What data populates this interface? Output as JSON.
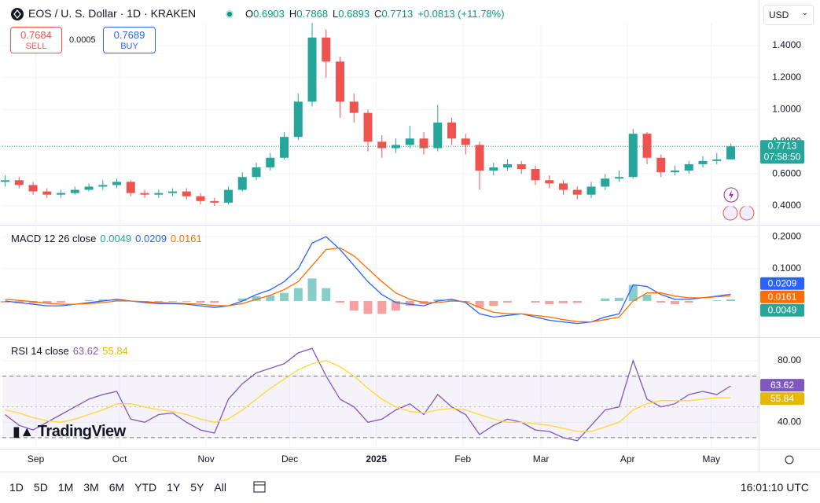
{
  "header": {
    "symbol": "EOS / U. S. Dollar · 1D · KRAKEN",
    "ohlc": [
      {
        "label": "O",
        "value": 0.6903
      },
      {
        "label": "H",
        "value": 0.7868
      },
      {
        "label": "L",
        "value": 0.6893
      },
      {
        "label": "C",
        "value": 0.7713
      }
    ],
    "change": "+0.0813 (+11.78%)",
    "sell": {
      "price": 0.7684,
      "label": "SELL"
    },
    "spread": 0.0005,
    "buy": {
      "price": 0.7689,
      "label": "BUY"
    },
    "currency": "USD"
  },
  "chart_data": [
    {
      "type": "candlestick",
      "x": [
        0,
        5,
        10,
        15,
        20,
        25,
        30,
        35,
        40,
        45,
        50,
        55,
        60,
        65,
        70,
        75,
        80,
        85,
        90,
        95,
        100,
        105,
        110,
        115,
        120,
        125,
        130,
        135,
        140,
        145,
        150,
        155,
        160,
        165,
        170,
        175,
        180,
        185,
        190,
        195,
        200,
        205,
        210,
        215,
        220,
        225,
        230,
        235,
        240,
        245,
        250,
        255,
        260
      ],
      "open": [
        0.55,
        0.56,
        0.53,
        0.49,
        0.47,
        0.48,
        0.5,
        0.52,
        0.53,
        0.55,
        0.48,
        0.47,
        0.48,
        0.49,
        0.46,
        0.43,
        0.42,
        0.5,
        0.58,
        0.64,
        0.7,
        0.83,
        1.05,
        1.45,
        1.3,
        1.05,
        0.98,
        0.8,
        0.76,
        0.78,
        0.82,
        0.76,
        0.92,
        0.82,
        0.78,
        0.62,
        0.64,
        0.66,
        0.63,
        0.56,
        0.54,
        0.5,
        0.47,
        0.52,
        0.57,
        0.58,
        0.85,
        0.7,
        0.61,
        0.62,
        0.66,
        0.68,
        0.6903
      ],
      "high": [
        0.59,
        0.58,
        0.55,
        0.51,
        0.5,
        0.52,
        0.54,
        0.56,
        0.57,
        0.56,
        0.5,
        0.5,
        0.51,
        0.51,
        0.48,
        0.45,
        0.52,
        0.61,
        0.67,
        0.73,
        0.86,
        1.1,
        1.54,
        1.5,
        1.33,
        1.1,
        1.0,
        0.84,
        0.82,
        0.9,
        0.86,
        1.03,
        0.95,
        0.85,
        0.8,
        0.67,
        0.69,
        0.68,
        0.65,
        0.59,
        0.56,
        0.52,
        0.55,
        0.6,
        0.62,
        0.88,
        0.86,
        0.72,
        0.65,
        0.68,
        0.71,
        0.73,
        0.7868
      ],
      "low": [
        0.52,
        0.51,
        0.47,
        0.45,
        0.45,
        0.47,
        0.49,
        0.5,
        0.51,
        0.46,
        0.45,
        0.45,
        0.46,
        0.44,
        0.41,
        0.4,
        0.41,
        0.49,
        0.56,
        0.62,
        0.69,
        0.81,
        1.02,
        1.2,
        0.95,
        0.92,
        0.74,
        0.7,
        0.73,
        0.76,
        0.72,
        0.74,
        0.78,
        0.72,
        0.5,
        0.59,
        0.62,
        0.6,
        0.53,
        0.51,
        0.47,
        0.44,
        0.45,
        0.5,
        0.55,
        0.57,
        0.66,
        0.58,
        0.59,
        0.6,
        0.64,
        0.66,
        0.6893
      ],
      "close": [
        0.56,
        0.53,
        0.49,
        0.47,
        0.48,
        0.5,
        0.52,
        0.53,
        0.55,
        0.48,
        0.47,
        0.48,
        0.49,
        0.46,
        0.43,
        0.42,
        0.5,
        0.58,
        0.64,
        0.7,
        0.83,
        1.05,
        1.45,
        1.3,
        1.05,
        0.98,
        0.8,
        0.76,
        0.78,
        0.82,
        0.76,
        0.92,
        0.82,
        0.78,
        0.62,
        0.64,
        0.66,
        0.63,
        0.56,
        0.54,
        0.5,
        0.47,
        0.52,
        0.57,
        0.58,
        0.85,
        0.7,
        0.61,
        0.62,
        0.66,
        0.68,
        0.69,
        0.7713
      ],
      "up_color": "#26a69a",
      "down_color": "#ef5350",
      "xlim": [
        -1,
        270
      ],
      "xticks": [
        {
          "value": 11,
          "label": "Sep"
        },
        {
          "value": 41,
          "label": "Oct"
        },
        {
          "value": 72,
          "label": "Nov"
        },
        {
          "value": 102,
          "label": "Dec"
        },
        {
          "value": 133,
          "label": "2025",
          "bold": true
        },
        {
          "value": 164,
          "label": "Feb"
        },
        {
          "value": 192,
          "label": "Mar"
        },
        {
          "value": 223,
          "label": "Apr"
        },
        {
          "value": 253,
          "label": "May"
        }
      ],
      "ylim": [
        0.287,
        1.537
      ],
      "yticks": [
        {
          "value": 0.4,
          "label": "0.4000"
        },
        {
          "value": 0.6,
          "label": "0.6000"
        },
        {
          "value": 0.8,
          "label": "0.8000"
        },
        {
          "value": 1.0,
          "label": "1.0000"
        },
        {
          "value": 1.2,
          "label": "1.2000"
        },
        {
          "value": 1.4,
          "label": "1.4000"
        }
      ],
      "last_price": 0.7713,
      "countdown": "07:58:50",
      "grid": true
    },
    {
      "type": "macd",
      "legend": {
        "label": "MACD 12 26 close",
        "values": [
          {
            "value": 0.0049,
            "color": "#26a69a"
          },
          {
            "value": 0.0209,
            "color": "#2962ff"
          },
          {
            "value": 0.0161,
            "color": "#ff6d00"
          }
        ]
      },
      "series": [
        {
          "color": "#2962ff",
          "values": [
            0.0,
            -0.005,
            -0.01,
            -0.015,
            -0.015,
            -0.01,
            -0.005,
            0.0,
            0.005,
            0.0,
            -0.005,
            -0.008,
            -0.008,
            -0.01,
            -0.015,
            -0.02,
            -0.015,
            0.0,
            0.02,
            0.035,
            0.06,
            0.1,
            0.18,
            0.2,
            0.16,
            0.11,
            0.06,
            0.02,
            -0.005,
            -0.01,
            -0.015,
            0.0,
            0.005,
            -0.005,
            -0.04,
            -0.05,
            -0.045,
            -0.04,
            -0.05,
            -0.06,
            -0.065,
            -0.07,
            -0.065,
            -0.05,
            -0.04,
            0.05,
            0.045,
            0.02,
            0.005,
            0.005,
            0.01,
            0.015,
            0.0209
          ]
        },
        {
          "color": "#ff6d00",
          "values": [
            0.005,
            0.002,
            -0.002,
            -0.007,
            -0.01,
            -0.01,
            -0.008,
            -0.005,
            0.0,
            0.0,
            -0.002,
            -0.005,
            -0.006,
            -0.008,
            -0.01,
            -0.014,
            -0.015,
            -0.008,
            0.005,
            0.018,
            0.035,
            0.06,
            0.11,
            0.16,
            0.165,
            0.14,
            0.1,
            0.06,
            0.025,
            0.005,
            -0.005,
            -0.005,
            0.0,
            -0.002,
            -0.02,
            -0.035,
            -0.04,
            -0.04,
            -0.045,
            -0.05,
            -0.058,
            -0.064,
            -0.065,
            -0.058,
            -0.05,
            0.0,
            0.025,
            0.025,
            0.015,
            0.01,
            0.01,
            0.013,
            0.0161
          ]
        }
      ],
      "histogram": {
        "pos_color": "#26a69a",
        "neg_color": "#ef5350",
        "values": [
          -0.005,
          -0.007,
          -0.008,
          -0.008,
          -0.005,
          0.0,
          0.003,
          0.005,
          0.005,
          0.0,
          -0.003,
          -0.003,
          -0.002,
          -0.002,
          -0.005,
          -0.006,
          0.0,
          0.008,
          0.015,
          0.017,
          0.025,
          0.04,
          0.07,
          0.04,
          -0.005,
          -0.03,
          -0.04,
          -0.04,
          -0.03,
          -0.015,
          -0.01,
          0.005,
          0.005,
          -0.003,
          -0.02,
          -0.015,
          -0.005,
          0.0,
          -0.005,
          -0.01,
          -0.007,
          -0.006,
          0.0,
          0.008,
          0.01,
          0.05,
          0.02,
          -0.005,
          -0.01,
          -0.005,
          0.0,
          0.002,
          0.0049
        ]
      },
      "ylim": [
        -0.11,
        0.232
      ],
      "yticks": [
        {
          "value": 0.1,
          "label": "0.1000"
        },
        {
          "value": 0.2,
          "label": "0.2000"
        }
      ],
      "grid": true
    },
    {
      "type": "line",
      "legend": {
        "label": "RSI 14 close",
        "values": [
          {
            "value": 63.62,
            "color": "#7e57c2"
          },
          {
            "value": 55.84,
            "color": "#e6b800"
          }
        ]
      },
      "series": [
        {
          "color": "#7e57c2",
          "values": [
            45,
            38,
            35,
            40,
            45,
            50,
            55,
            58,
            60,
            42,
            40,
            45,
            46,
            40,
            35,
            33,
            55,
            65,
            72,
            75,
            78,
            85,
            88,
            70,
            55,
            50,
            40,
            42,
            48,
            52,
            45,
            58,
            50,
            45,
            32,
            38,
            42,
            40,
            35,
            34,
            30,
            28,
            38,
            48,
            50,
            80,
            55,
            50,
            52,
            58,
            60,
            58,
            63.62
          ]
        },
        {
          "color": "#fdd835",
          "values": [
            48,
            46,
            43,
            41,
            40,
            42,
            45,
            48,
            52,
            52,
            50,
            48,
            47,
            45,
            42,
            40,
            42,
            48,
            55,
            62,
            68,
            74,
            78,
            80,
            76,
            70,
            62,
            55,
            50,
            47,
            46,
            48,
            49,
            48,
            45,
            42,
            40,
            40,
            39,
            38,
            36,
            34,
            34,
            37,
            40,
            48,
            52,
            54,
            54,
            54,
            55,
            56,
            55.84
          ]
        }
      ],
      "bands": {
        "upper": 70,
        "middle": 50,
        "lower": 30
      },
      "ylim": [
        23.3,
        94.2
      ],
      "yticks": [
        {
          "value": 40,
          "label": "40.00"
        },
        {
          "value": 80,
          "label": "80.00"
        }
      ],
      "grid": true
    }
  ],
  "logo": "TradingView",
  "toolbar": {
    "periods": [
      "1D",
      "5D",
      "1M",
      "3M",
      "6M",
      "YTD",
      "1Y",
      "5Y",
      "All"
    ],
    "time": "16:01:10 UTC"
  }
}
